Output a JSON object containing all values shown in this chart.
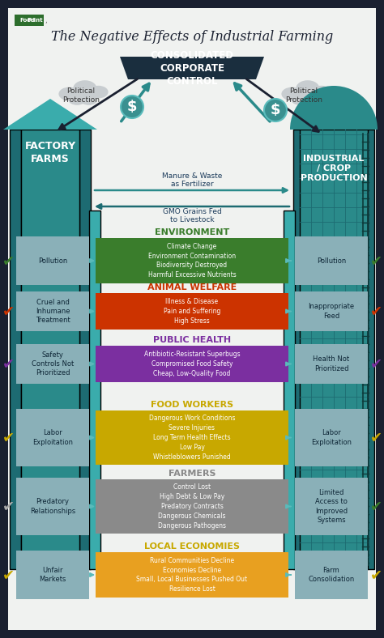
{
  "title": "The Negative Effects of Industrial Farming",
  "sections": [
    {
      "label": "ENVIRONMENT",
      "label_color": "#3a7d2c",
      "box_color": "#3a7d2c",
      "text": "Climate Change\nEnvironment Contamination\nBiodiversity Destroyed\nHarmful Excessive Nutrients",
      "left_item": "Pollution",
      "right_item": "Pollution",
      "left_check_color": "#3a7d2c",
      "right_check_color": "#3a7d2c"
    },
    {
      "label": "ANIMAL WELFARE",
      "label_color": "#cc3300",
      "box_color": "#cc3300",
      "text": "Illness & Disease\nPain and Suffering\nHigh Stress",
      "left_item": "Cruel and\nInhumane\nTreatment",
      "right_item": "Inappropriate\nFeed",
      "left_check_color": "#cc3300",
      "right_check_color": "#cc3300"
    },
    {
      "label": "PUBLIC HEALTH",
      "label_color": "#7b2fa0",
      "box_color": "#7b2fa0",
      "text": "Antibiotic-Resistant Superbugs\nCompromised Food Safety\nCheap, Low-Quality Food",
      "left_item": "Safety\nControls Not\nPrioritized",
      "right_item": "Health Not\nPrioritized",
      "left_check_color": "#7b2fa0",
      "right_check_color": "#7b2fa0"
    },
    {
      "label": "FOOD WORKERS",
      "label_color": "#c8a800",
      "box_color": "#c8a800",
      "text": "Dangerous Work Conditions\nSevere Injuries\nLong Term Health Effects\nLow Pay\nWhistleblowers Punished",
      "left_item": "Labor\nExploitation",
      "right_item": "Labor\nExploitation",
      "left_check_color": "#c8a800",
      "right_check_color": "#c8a800"
    },
    {
      "label": "FARMERS",
      "label_color": "#888888",
      "box_color": "#8a8a8a",
      "text": "Control Lost\nHigh Debt & Low Pay\nPredatory Contracts\nDangerous Chemicals\nDangerous Pathogens",
      "left_item": "Predatory\nRelationships",
      "right_item": "Limited\nAccess to\nImproved\nSystems",
      "left_check_color": "#aaaaaa",
      "right_check_color": "#3a7d2c"
    },
    {
      "label": "LOCAL ECONOMIES",
      "label_color": "#c8a800",
      "box_color": "#e8a020",
      "text": "Rural Communities Decline\nEconomies Decline\nSmall, Local Businesses Pushed Out\nResilience Lost",
      "left_item": "Unfair\nMarkets",
      "right_item": "Farm\nConsolidation",
      "left_check_color": "#c8a800",
      "right_check_color": "#c8a800"
    }
  ],
  "teal_dark": "#1d6b72",
  "teal_mid": "#2a8a8a",
  "teal_light": "#3aacac",
  "teal_panel": "#5ababa",
  "left_panel_teal": "#5ababa",
  "bg_white": "#f0f2f0",
  "border_dark": "#1a2030",
  "corp_box_color": "#1a2e3e",
  "cloud_color": "#c8cdd0",
  "dollar_teal": "#3a9090",
  "dark_arrow": "#1a2030",
  "gray_panel": "#8ab0b8"
}
